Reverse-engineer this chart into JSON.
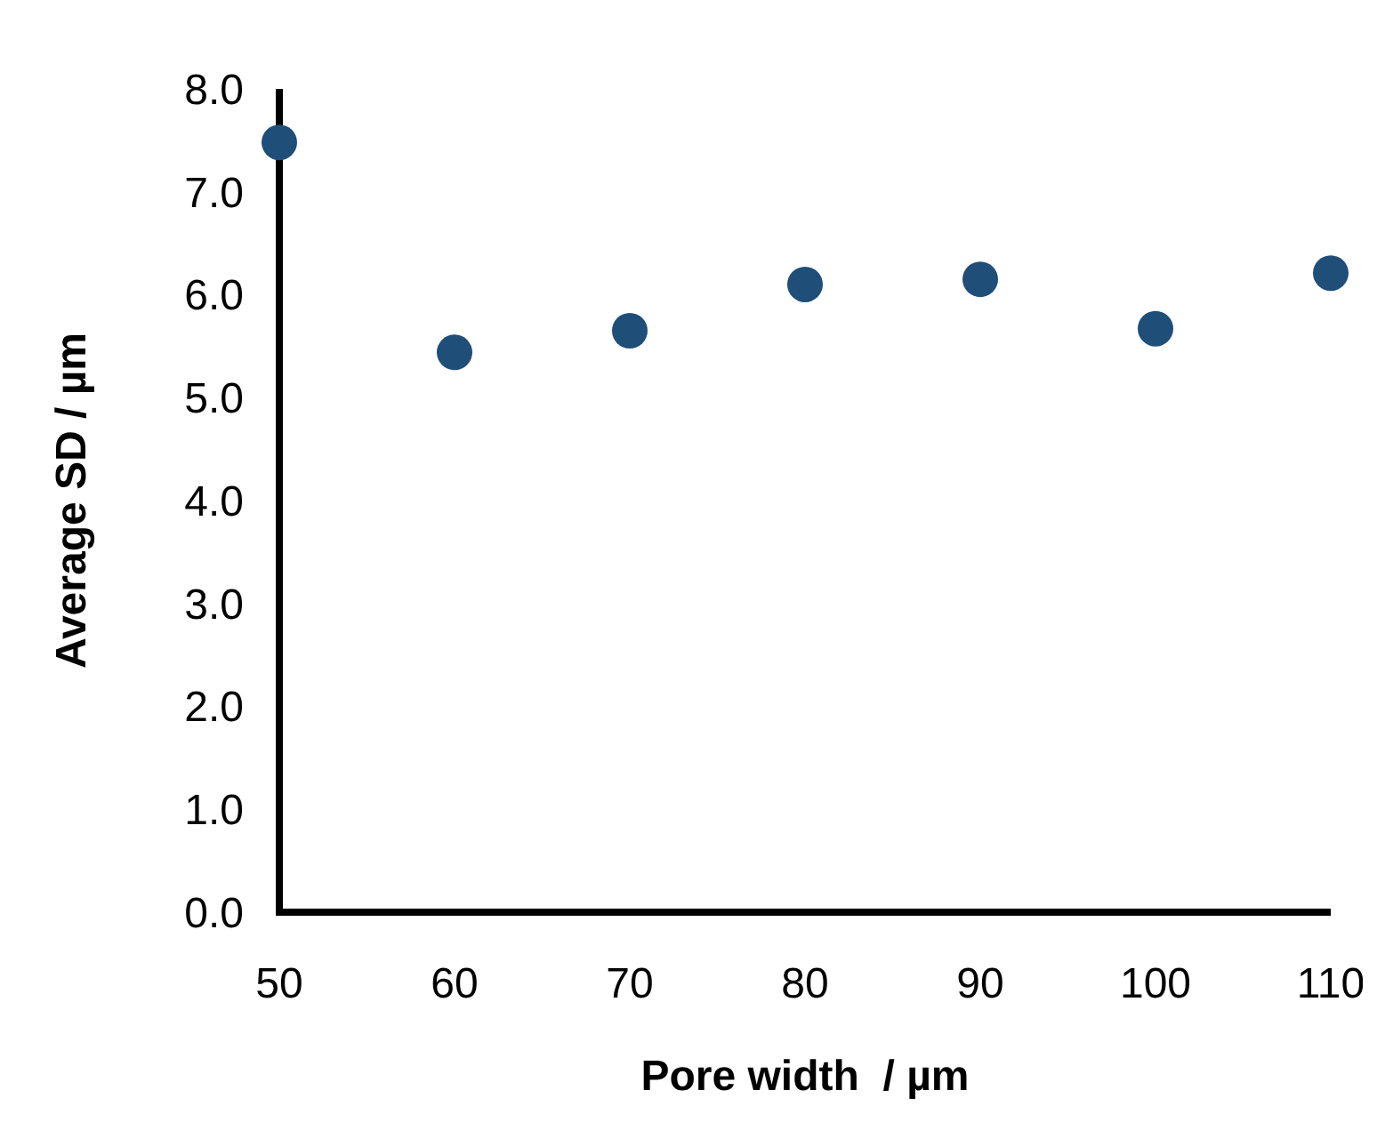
{
  "chart_data": {
    "type": "scatter",
    "xlabel": "Pore width  / µm",
    "ylabel": "Average SD / µm",
    "x": [
      50,
      60,
      70,
      80,
      90,
      100,
      110
    ],
    "series": [
      {
        "color": "#1f4e79",
        "values": [
          7.48,
          5.44,
          5.65,
          6.1,
          6.15,
          5.67,
          6.21
        ]
      }
    ],
    "xlim": [
      50,
      110
    ],
    "xticks": [
      50,
      60,
      70,
      80,
      90,
      100,
      110
    ],
    "ylim": [
      0,
      8
    ],
    "yticks": [
      {
        "value": 0,
        "label": "0.0"
      },
      {
        "value": 1,
        "label": "1.0"
      },
      {
        "value": 2,
        "label": "2.0"
      },
      {
        "value": 3,
        "label": "3.0"
      },
      {
        "value": 4,
        "label": "4.0"
      },
      {
        "value": 5,
        "label": "5.0"
      },
      {
        "value": 6,
        "label": "6.0"
      },
      {
        "value": 7,
        "label": "7.0"
      },
      {
        "value": 8,
        "label": "8.0"
      }
    ],
    "marker": "circle"
  }
}
